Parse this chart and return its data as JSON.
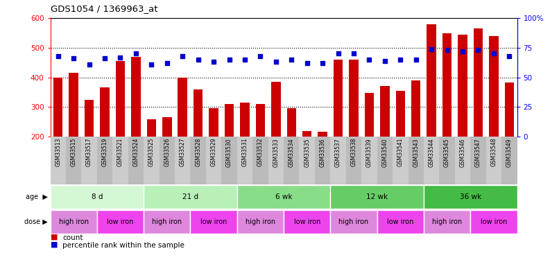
{
  "title": "GDS1054 / 1369963_at",
  "samples": [
    "GSM33513",
    "GSM33515",
    "GSM33517",
    "GSM33519",
    "GSM33521",
    "GSM33524",
    "GSM33525",
    "GSM33526",
    "GSM33527",
    "GSM33528",
    "GSM33529",
    "GSM33530",
    "GSM33531",
    "GSM33532",
    "GSM33533",
    "GSM33534",
    "GSM33535",
    "GSM33536",
    "GSM33537",
    "GSM33538",
    "GSM33539",
    "GSM33540",
    "GSM33541",
    "GSM33543",
    "GSM33544",
    "GSM33545",
    "GSM33546",
    "GSM33547",
    "GSM33548",
    "GSM33549"
  ],
  "counts": [
    400,
    415,
    325,
    365,
    455,
    470,
    258,
    265,
    400,
    360,
    295,
    310,
    315,
    310,
    385,
    295,
    218,
    215,
    460,
    460,
    348,
    370,
    355,
    390,
    580,
    550,
    545,
    565,
    540,
    382
  ],
  "percentiles": [
    68,
    66,
    61,
    66,
    67,
    70,
    61,
    62,
    68,
    65,
    63,
    65,
    65,
    68,
    63,
    65,
    62,
    62,
    70,
    70,
    65,
    64,
    65,
    65,
    74,
    73,
    72,
    73,
    70,
    68
  ],
  "age_groups": [
    {
      "label": "8 d",
      "start": 0,
      "end": 6,
      "color": "#d4f7d4"
    },
    {
      "label": "21 d",
      "start": 6,
      "end": 12,
      "color": "#b8f0b8"
    },
    {
      "label": "6 wk",
      "start": 12,
      "end": 18,
      "color": "#88dd88"
    },
    {
      "label": "12 wk",
      "start": 18,
      "end": 24,
      "color": "#66cc66"
    },
    {
      "label": "36 wk",
      "start": 24,
      "end": 30,
      "color": "#44bb44"
    }
  ],
  "dose_groups": [
    {
      "label": "high iron",
      "start": 0,
      "end": 3,
      "color": "#dd88dd"
    },
    {
      "label": "low iron",
      "start": 3,
      "end": 6,
      "color": "#ee44ee"
    },
    {
      "label": "high iron",
      "start": 6,
      "end": 9,
      "color": "#dd88dd"
    },
    {
      "label": "low iron",
      "start": 9,
      "end": 12,
      "color": "#ee44ee"
    },
    {
      "label": "high iron",
      "start": 12,
      "end": 15,
      "color": "#dd88dd"
    },
    {
      "label": "low iron",
      "start": 15,
      "end": 18,
      "color": "#ee44ee"
    },
    {
      "label": "high iron",
      "start": 18,
      "end": 21,
      "color": "#dd88dd"
    },
    {
      "label": "low iron",
      "start": 21,
      "end": 24,
      "color": "#ee44ee"
    },
    {
      "label": "high iron",
      "start": 24,
      "end": 27,
      "color": "#dd88dd"
    },
    {
      "label": "low iron",
      "start": 27,
      "end": 30,
      "color": "#ee44ee"
    }
  ],
  "bar_color": "#cc0000",
  "dot_color": "#0000cc",
  "ylim_left": [
    200,
    600
  ],
  "ylim_right": [
    0,
    100
  ],
  "yticks_left": [
    200,
    300,
    400,
    500,
    600
  ],
  "yticks_right": [
    0,
    25,
    50,
    75,
    100
  ],
  "grid_values": [
    300,
    400,
    500
  ],
  "background_color": "#ffffff",
  "bar_bottom": 200,
  "sample_bg": "#cccccc",
  "legend_count_color": "#cc0000",
  "legend_pct_color": "#0000cc"
}
